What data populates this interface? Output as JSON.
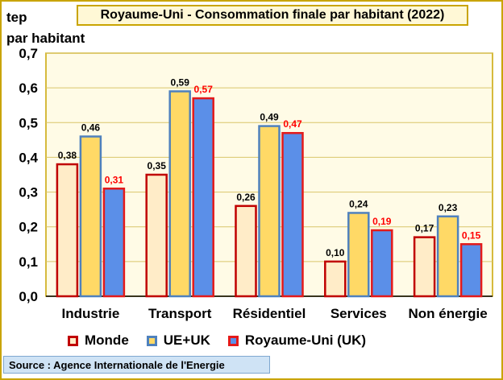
{
  "title": "Royaume-Uni - Consommation finale par habitant (2022)",
  "y_unit_line1": "tep",
  "y_unit_line2": "par habitant",
  "source": "Source : Agence Internationale de l'Energie",
  "colors": {
    "monde_fill": "#ffecc8",
    "monde_border": "#c00000",
    "ue_fill": "#ffd966",
    "ue_border": "#4f81bd",
    "uk_fill": "#5b8fe8",
    "uk_border": "#e41a1a",
    "uk_label": "#ff0000",
    "plot_bg": "#fffbe6",
    "grid": "#d9c56a"
  },
  "chart_data": {
    "type": "bar",
    "title": "Royaume-Uni - Consommation finale par habitant (2022)",
    "ylabel": "tep par habitant",
    "ylim": [
      0,
      0.7
    ],
    "yticks": [
      "0,0",
      "0,1",
      "0,2",
      "0,3",
      "0,4",
      "0,5",
      "0,6",
      "0,7"
    ],
    "categories": [
      "Industrie",
      "Transport",
      "Résidentiel",
      "Services",
      "Non énergie"
    ],
    "series": [
      {
        "name": "Monde",
        "values": [
          0.38,
          0.35,
          0.26,
          0.1,
          0.17
        ],
        "labels": [
          "0,38",
          "0,35",
          "0,26",
          "0,10",
          "0,17"
        ]
      },
      {
        "name": "UE+UK",
        "values": [
          0.46,
          0.59,
          0.49,
          0.24,
          0.23
        ],
        "labels": [
          "0,46",
          "0,59",
          "0,49",
          "0,24",
          "0,23"
        ]
      },
      {
        "name": "Royaume-Uni (UK)",
        "values": [
          0.31,
          0.57,
          0.47,
          0.19,
          0.15
        ],
        "labels": [
          "0,31",
          "0,57",
          "0,47",
          "0,19",
          "0,15"
        ]
      }
    ],
    "legend": "bottom"
  }
}
